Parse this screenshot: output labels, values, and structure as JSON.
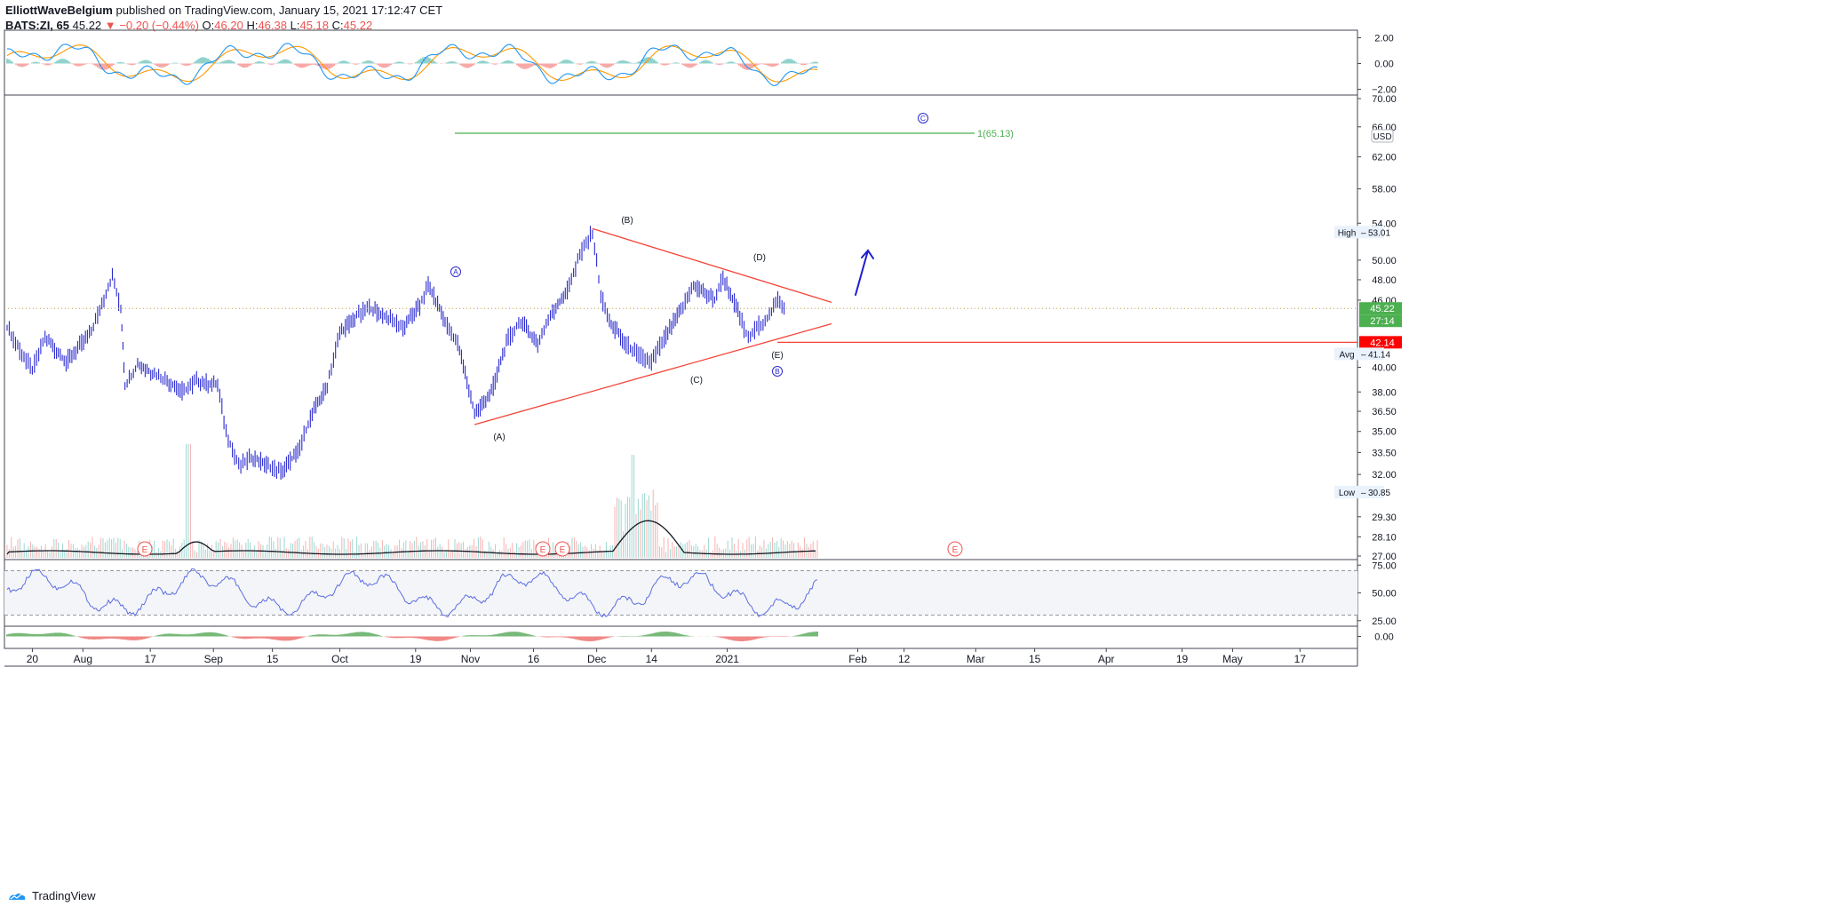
{
  "header": {
    "author": "ElliottWaveBelgium",
    "published": "published on TradingView.com, January 15, 2021 17:12:47 CET",
    "symbol": "BATS:ZI, 65",
    "last": "45.22",
    "change": "−0.20 (−0.44%)",
    "o_label": "O:",
    "o_value": "46.20",
    "h_label": "H:",
    "h_value": "46.38",
    "l_label": "L:",
    "l_value": "45.18",
    "c_label": "C:",
    "c_value": "45.22"
  },
  "footer": {
    "brand": "TradingView"
  },
  "colors": {
    "price": "#2a2acf",
    "triangle": "#f44336",
    "target": "#4caf50",
    "macd_fast": "#2196f3",
    "macd_slow": "#ff9800",
    "rsi": "#5b6ee1",
    "hist_up": "#26a69a",
    "hist_dn": "#ef5350"
  },
  "chart_data": [
    {
      "type": "line",
      "name": "price",
      "x_labels": [
        "20",
        "Aug",
        "17",
        "Sep",
        "15",
        "Oct",
        "19",
        "Nov",
        "16",
        "Dec",
        "14",
        "2021",
        "Feb",
        "12",
        "Mar",
        "15",
        "Apr",
        "19",
        "May",
        "17"
      ],
      "y_ticks": [
        "70.00",
        "66.00",
        "62.00",
        "58.00",
        "54.00",
        "50.00",
        "48.00",
        "46.00",
        "40.00",
        "38.00",
        "36.50",
        "35.00",
        "33.50",
        "32.00",
        "29.30",
        "28.10",
        "27.00"
      ],
      "y_scale": "log",
      "ylim": [
        27,
        70
      ],
      "currency": "USD",
      "series": {
        "x": [
          "Jul 14",
          "Jul 17",
          "Jul 20",
          "Jul 23",
          "Jul 28",
          "Aug 3",
          "Aug 6",
          "Aug 8",
          "Aug 10",
          "Aug 11",
          "Aug 14",
          "Aug 18",
          "Aug 21",
          "Aug 25",
          "Aug 28",
          "Sep 2",
          "Sep 4",
          "Sep 7",
          "Sep 10",
          "Sep 14",
          "Sep 17",
          "Sep 21",
          "Sep 24",
          "Sep 28",
          "Oct 1",
          "Oct 5",
          "Oct 8",
          "Oct 13",
          "Oct 16",
          "Oct 20",
          "Oct 22",
          "Oct 26",
          "Oct 29",
          "Nov 2",
          "Nov 6",
          "Nov 10",
          "Nov 13",
          "Nov 17",
          "Nov 20",
          "Nov 24",
          "Nov 27",
          "Nov 30",
          "Dec 2",
          "Dec 4",
          "Dec 8",
          "Dec 11",
          "Dec 14",
          "Dec 17",
          "Dec 21",
          "Dec 24",
          "Dec 29",
          "Dec 31",
          "Jan 4",
          "Jan 6",
          "Jan 8",
          "Jan 11",
          "Jan 13",
          "Jan 15"
        ],
        "close": [
          43.5,
          41.5,
          39.8,
          42.5,
          40.5,
          43.0,
          46.2,
          48.3,
          45.0,
          38.5,
          40.2,
          39.4,
          38.9,
          38.0,
          38.9,
          38.5,
          35.0,
          32.5,
          33.2,
          32.6,
          32.2,
          33.5,
          36.0,
          38.5,
          43.0,
          44.5,
          45.3,
          44.2,
          43.5,
          45.5,
          47.5,
          44.0,
          42.0,
          36.3,
          38.0,
          42.5,
          44.0,
          42.0,
          44.5,
          47.0,
          50.5,
          53.0,
          46.5,
          44.0,
          42.0,
          41.0,
          40.5,
          42.5,
          45.0,
          47.5,
          46.0,
          48.3,
          44.5,
          42.3,
          43.5,
          44.5,
          46.0,
          45.22
        ]
      },
      "price_labels": {
        "last": "45.22",
        "countdown": "27:14",
        "level": "42.14",
        "high_label": "High",
        "high_value": "53.01",
        "low_label": "Low",
        "low_value": "30.85",
        "avg_label": "Avg",
        "avg_value": "41.14"
      },
      "annotations": {
        "target_label": "1(65.13)",
        "target_value": 65.13,
        "wave_A_circle": "A",
        "wave_B_circle": "B",
        "wave_C_circle": "C",
        "sub_A": "(A)",
        "sub_B": "(B)",
        "sub_C": "(C)",
        "sub_D": "(D)",
        "sub_E": "(E)",
        "earnings_marker": "E"
      }
    },
    {
      "type": "line",
      "name": "macd",
      "y_ticks": [
        "2.00",
        "0.00",
        "−2.00"
      ],
      "ylim": [
        -2,
        2
      ]
    },
    {
      "type": "line",
      "name": "rsi",
      "y_ticks": [
        "75.00",
        "50.00",
        "25.00"
      ],
      "ylim": [
        20,
        80
      ],
      "bands": [
        70,
        30
      ]
    },
    {
      "type": "bar",
      "name": "momentum",
      "y_ticks": [
        "0.00"
      ]
    }
  ]
}
